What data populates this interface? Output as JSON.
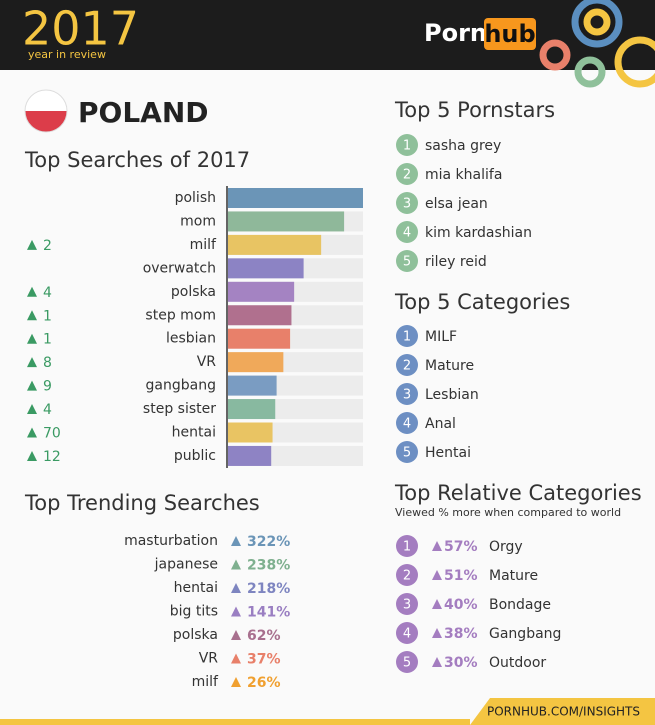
{
  "header": {
    "year": "2017",
    "tagline": "year in review",
    "logo_left": "Porn",
    "logo_right": "hub"
  },
  "country": "POLAND",
  "chart_data": {
    "type": "bar",
    "title": "Top Searches of 2017",
    "categories": [
      "polish",
      "mom",
      "milf",
      "overwatch",
      "polska",
      "step mom",
      "lesbian",
      "VR",
      "gangbang",
      "step sister",
      "hentai",
      "public"
    ],
    "values": [
      100,
      86,
      69,
      56,
      49,
      47,
      46,
      41,
      36,
      35,
      33,
      32
    ],
    "colors": [
      "#6b95b7",
      "#8fb89a",
      "#e8c463",
      "#8c83c4",
      "#a483c2",
      "#b0708e",
      "#e8806a",
      "#f0a95a",
      "#7a9cc2",
      "#88b9a0",
      "#e9c463",
      "#8e83c4"
    ],
    "rank_change": [
      null,
      null,
      2,
      null,
      4,
      1,
      1,
      8,
      9,
      4,
      70,
      12
    ],
    "xlim": [
      0,
      100
    ]
  },
  "trending": {
    "title": "Top Trending Searches",
    "terms": [
      "masturbation",
      "japanese",
      "hentai",
      "big tits",
      "polska",
      "VR",
      "milf"
    ],
    "values": [
      322,
      238,
      218,
      141,
      62,
      37,
      26
    ],
    "value_labels": [
      "322%",
      "238%",
      "218%",
      "141%",
      "62%",
      "37%",
      "26%"
    ],
    "colors": [
      "#6b95b7",
      "#7fb08f",
      "#7e85c0",
      "#9a7fc2",
      "#a8708e",
      "#e8806a",
      "#f0a030"
    ]
  },
  "ranks": [
    1,
    2,
    3,
    4,
    5
  ],
  "pornstars": {
    "title": "Top 5 Pornstars",
    "items": [
      "sasha grey",
      "mia khalifa",
      "elsa jean",
      "kim kardashian",
      "riley reid"
    ],
    "color": "#8fc09a"
  },
  "categories": {
    "title": "Top 5 Categories",
    "items": [
      "MILF",
      "Mature",
      "Lesbian",
      "Anal",
      "Hentai"
    ],
    "color": "#6d8fc3"
  },
  "relative": {
    "title": "Top Relative Categories",
    "subtitle": "Viewed % more when compared to world",
    "items": [
      "Orgy",
      "Mature",
      "Bondage",
      "Gangbang",
      "Outdoor"
    ],
    "values": [
      57,
      51,
      40,
      38,
      30
    ],
    "value_labels": [
      "57%",
      "51%",
      "40%",
      "38%",
      "30%"
    ],
    "color": "#a47dc0"
  },
  "footer": "PORNHUB.COM/INSIGHTS"
}
